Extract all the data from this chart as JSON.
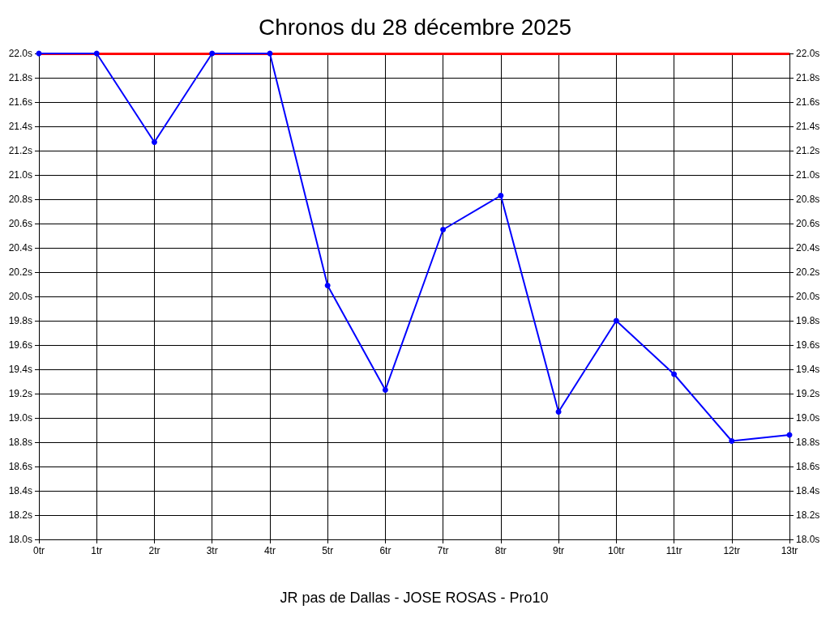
{
  "chart_data": {
    "type": "line",
    "title": "Chronos du 28 décembre 2025",
    "xlabel": "JR pas de Dallas - JOSE ROSAS - Pro10",
    "categories": [
      "0tr",
      "1tr",
      "2tr",
      "3tr",
      "4tr",
      "5tr",
      "6tr",
      "7tr",
      "8tr",
      "9tr",
      "10tr",
      "11tr",
      "12tr",
      "13tr"
    ],
    "series": [
      {
        "color": "#0000ff",
        "values": [
          22.0,
          22.0,
          21.27,
          22.0,
          22.0,
          20.09,
          19.23,
          20.55,
          20.83,
          19.05,
          19.8,
          19.36,
          18.81,
          18.86
        ]
      }
    ],
    "ylim": [
      18.0,
      22.0
    ],
    "yticks": [
      {
        "value": 18.0,
        "label": "18.0s"
      },
      {
        "value": 18.2,
        "label": "18.2s"
      },
      {
        "value": 18.4,
        "label": "18.4s"
      },
      {
        "value": 18.6,
        "label": "18.6s"
      },
      {
        "value": 18.8,
        "label": "18.8s"
      },
      {
        "value": 19.0,
        "label": "19.0s"
      },
      {
        "value": 19.2,
        "label": "19.2s"
      },
      {
        "value": 19.4,
        "label": "19.4s"
      },
      {
        "value": 19.6,
        "label": "19.6s"
      },
      {
        "value": 19.8,
        "label": "19.8s"
      },
      {
        "value": 20.0,
        "label": "20.0s"
      },
      {
        "value": 20.2,
        "label": "20.2s"
      },
      {
        "value": 20.4,
        "label": "20.4s"
      },
      {
        "value": 20.6,
        "label": "20.6s"
      },
      {
        "value": 20.8,
        "label": "20.8s"
      },
      {
        "value": 21.0,
        "label": "21.0s"
      },
      {
        "value": 21.2,
        "label": "21.2s"
      },
      {
        "value": 21.4,
        "label": "21.4s"
      },
      {
        "value": 21.6,
        "label": "21.6s"
      },
      {
        "value": 21.8,
        "label": "21.8s"
      },
      {
        "value": 22.0,
        "label": "22.0s"
      }
    ],
    "y2lim": [
      18.0,
      22.0
    ],
    "y2ticks": [
      {
        "value": 18.0,
        "label": "18.0s"
      },
      {
        "value": 18.2,
        "label": "18.2s"
      },
      {
        "value": 18.4,
        "label": "18.4s"
      },
      {
        "value": 18.6,
        "label": "18.6s"
      },
      {
        "value": 18.8,
        "label": "18.8s"
      },
      {
        "value": 19.0,
        "label": "19.0s"
      },
      {
        "value": 19.2,
        "label": "19.2s"
      },
      {
        "value": 19.4,
        "label": "19.4s"
      },
      {
        "value": 19.6,
        "label": "19.6s"
      },
      {
        "value": 19.8,
        "label": "19.8s"
      },
      {
        "value": 20.0,
        "label": "20.0s"
      },
      {
        "value": 20.2,
        "label": "20.2s"
      },
      {
        "value": 20.4,
        "label": "20.4s"
      },
      {
        "value": 20.6,
        "label": "20.6s"
      },
      {
        "value": 20.8,
        "label": "20.8s"
      },
      {
        "value": 21.0,
        "label": "21.0s"
      },
      {
        "value": 21.2,
        "label": "21.2s"
      },
      {
        "value": 21.4,
        "label": "21.4s"
      },
      {
        "value": 21.6,
        "label": "21.6s"
      },
      {
        "value": 21.8,
        "label": "21.8s"
      },
      {
        "value": 22.0,
        "label": "22.0s"
      }
    ],
    "ref_lines": [
      {
        "axis": "y",
        "value": 22.0,
        "color": "#ff0000",
        "line_style": "solid"
      }
    ],
    "grid": true,
    "marker": "circle",
    "line_style": "solid"
  }
}
